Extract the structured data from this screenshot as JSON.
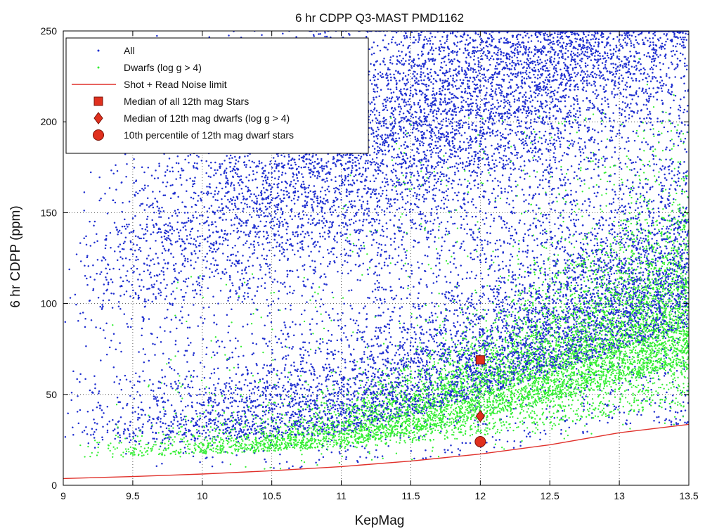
{
  "chart_data": {
    "type": "scatter",
    "title": "6 hr CDPP Q3-MAST PMD1162",
    "xlabel": "KepMag",
    "ylabel": "6 hr CDPP (ppm)",
    "xlim": [
      9,
      13.5
    ],
    "ylim": [
      0,
      250
    ],
    "xticks": [
      9,
      9.5,
      10,
      10.5,
      11,
      11.5,
      12,
      12.5,
      13,
      13.5
    ],
    "xtick_labels": [
      "9",
      "9.5",
      "10",
      "10.5",
      "11",
      "11.5",
      "12",
      "12.5",
      "13",
      "13.5"
    ],
    "yticks": [
      0,
      50,
      100,
      150,
      200,
      250
    ],
    "ytick_labels": [
      "0",
      "50",
      "100",
      "150",
      "200",
      "250"
    ],
    "grid": true,
    "legend_position": "top-left",
    "legend": [
      {
        "label": "All",
        "marker": "dot",
        "color": "#1f2fd0"
      },
      {
        "label": "Dwarfs (log g > 4)",
        "marker": "dot",
        "color": "#33ee33"
      },
      {
        "label": "Shot + Read Noise limit",
        "marker": "line",
        "color": "#e0302a"
      },
      {
        "label": "Median of all 12th mag Stars",
        "marker": "square",
        "color": "#e0301e"
      },
      {
        "label": "Median of 12th mag dwarfs (log g > 4)",
        "marker": "diamond",
        "color": "#e0301e"
      },
      {
        "label": "10th percentile of 12th mag dwarf stars",
        "marker": "circle",
        "color": "#e0301e"
      }
    ],
    "series": [
      {
        "name": "Shot + Read Noise limit",
        "type": "line",
        "color": "#e0302a",
        "x": [
          9,
          9.5,
          10,
          10.5,
          11,
          11.5,
          12,
          12.5,
          13,
          13.5
        ],
        "y": [
          3.7,
          4.8,
          6.2,
          8.0,
          10.3,
          13.3,
          17.2,
          22.3,
          28.9,
          33.5
        ]
      },
      {
        "name": "Median of all 12th mag Stars",
        "type": "point",
        "marker": "square",
        "color": "#e0301e",
        "x": [
          12
        ],
        "y": [
          69
        ]
      },
      {
        "name": "Median of 12th mag dwarfs (log g > 4)",
        "type": "point",
        "marker": "diamond",
        "color": "#e0301e",
        "x": [
          12
        ],
        "y": [
          38
        ]
      },
      {
        "name": "10th percentile of 12th mag dwarf stars",
        "type": "point",
        "marker": "circle",
        "color": "#e0301e",
        "x": [
          12
        ],
        "y": [
          24
        ]
      }
    ],
    "scatter_clouds": [
      {
        "name": "All",
        "color": "#1f2fd0",
        "approx_profile": [
          {
            "x": 9.25,
            "y_low": 8,
            "y_median": 95,
            "y_high": 215
          },
          {
            "x": 10,
            "y_low": 10,
            "y_median": 105,
            "y_high": 235
          },
          {
            "x": 11,
            "y_low": 15,
            "y_median": 120,
            "y_high": 250
          },
          {
            "x": 12,
            "y_low": 18,
            "y_median": 69,
            "y_high": 250
          },
          {
            "x": 13,
            "y_low": 28,
            "y_median": 120,
            "y_high": 250
          },
          {
            "x": 13.5,
            "y_low": 32,
            "y_median": 150,
            "y_high": 250
          }
        ]
      },
      {
        "name": "Dwarfs (log g > 4)",
        "color": "#33ee33",
        "approx_profile": [
          {
            "x": 9.25,
            "y_low": 6,
            "y_median": 25,
            "y_high": 120
          },
          {
            "x": 10,
            "y_low": 8,
            "y_median": 25,
            "y_high": 95
          },
          {
            "x": 11,
            "y_low": 12,
            "y_median": 28,
            "y_high": 90
          },
          {
            "x": 12,
            "y_low": 17,
            "y_median": 38,
            "y_high": 120
          },
          {
            "x": 13,
            "y_low": 27,
            "y_median": 50,
            "y_high": 200
          },
          {
            "x": 13.5,
            "y_low": 32,
            "y_median": 60,
            "y_high": 250
          }
        ]
      }
    ]
  }
}
